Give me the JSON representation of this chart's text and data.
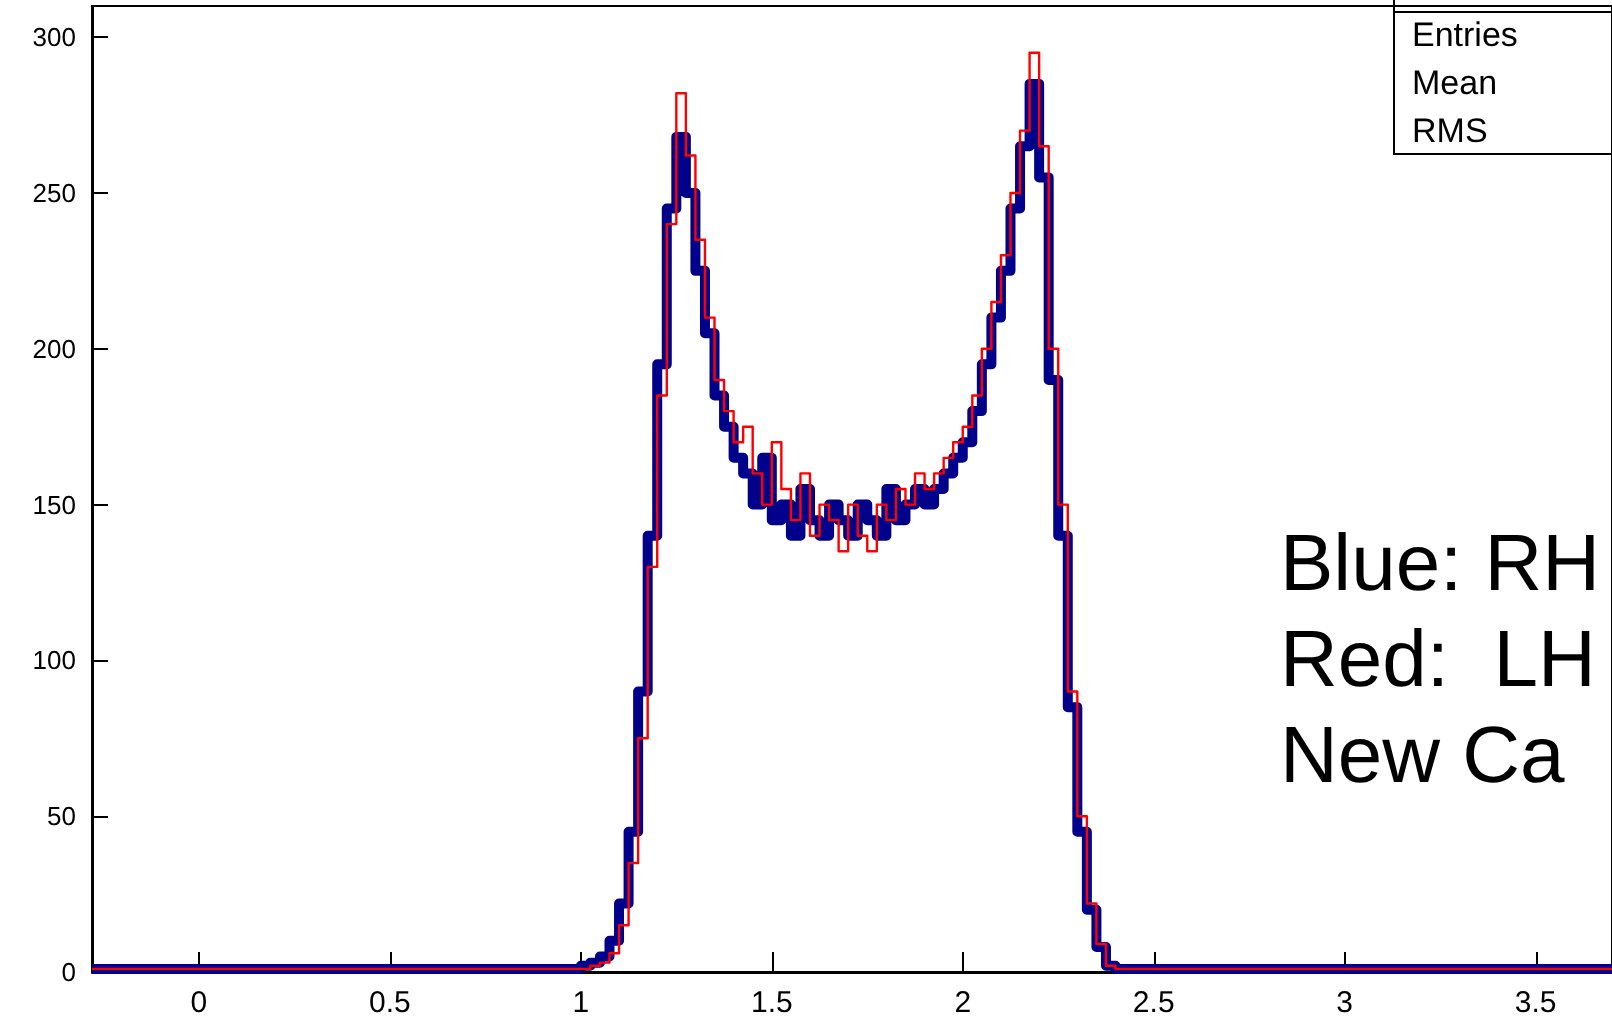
{
  "chart_data": {
    "type": "histogram",
    "bins": [
      -0.28,
      1.0,
      1.025,
      1.05,
      1.075,
      1.1,
      1.125,
      1.15,
      1.175,
      1.2,
      1.225,
      1.25,
      1.275,
      1.3,
      1.325,
      1.35,
      1.375,
      1.4,
      1.425,
      1.45,
      1.475,
      1.5,
      1.525,
      1.55,
      1.575,
      1.6,
      1.625,
      1.65,
      1.675,
      1.7,
      1.725,
      1.75,
      1.775,
      1.8,
      1.825,
      1.85,
      1.875,
      1.9,
      1.925,
      1.95,
      1.975,
      2.0,
      2.025,
      2.05,
      2.075,
      2.1,
      2.125,
      2.15,
      2.175,
      2.2,
      2.225,
      2.25,
      2.275,
      2.3,
      2.325,
      2.35,
      2.375,
      2.4,
      3.7
    ],
    "series": [
      {
        "color": "#00008b",
        "values": [
          1,
          2,
          3,
          5,
          10,
          22,
          45,
          90,
          140,
          195,
          245,
          268,
          250,
          225,
          205,
          185,
          175,
          165,
          160,
          150,
          165,
          145,
          150,
          140,
          155,
          145,
          140,
          150,
          145,
          140,
          150,
          145,
          140,
          155,
          145,
          150,
          155,
          150,
          155,
          160,
          165,
          170,
          180,
          195,
          210,
          225,
          245,
          265,
          285,
          255,
          190,
          140,
          85,
          45,
          20,
          8,
          2,
          1
        ]
      },
      {
        "color": "#ff0000",
        "values": [
          1,
          1,
          2,
          3,
          6,
          15,
          35,
          75,
          130,
          185,
          240,
          282,
          262,
          235,
          210,
          190,
          180,
          170,
          175,
          160,
          150,
          170,
          155,
          145,
          160,
          140,
          150,
          145,
          135,
          150,
          140,
          135,
          150,
          145,
          155,
          150,
          160,
          155,
          160,
          165,
          170,
          175,
          185,
          200,
          215,
          230,
          250,
          270,
          295,
          265,
          200,
          150,
          90,
          50,
          22,
          9,
          2,
          1
        ]
      }
    ],
    "xlim": [
      -0.28,
      3.7
    ],
    "xticks": [
      0,
      0.5,
      1,
      1.5,
      2,
      2.5,
      3,
      3.5
    ],
    "ylim": [
      0,
      310
    ],
    "yticks": [
      0,
      50,
      100,
      150,
      200,
      250,
      300
    ],
    "grid": false,
    "annotations": [
      "Entries",
      "Mean",
      "RMS",
      "Blue: RH",
      "Red:  LH",
      "New Ca"
    ]
  }
}
